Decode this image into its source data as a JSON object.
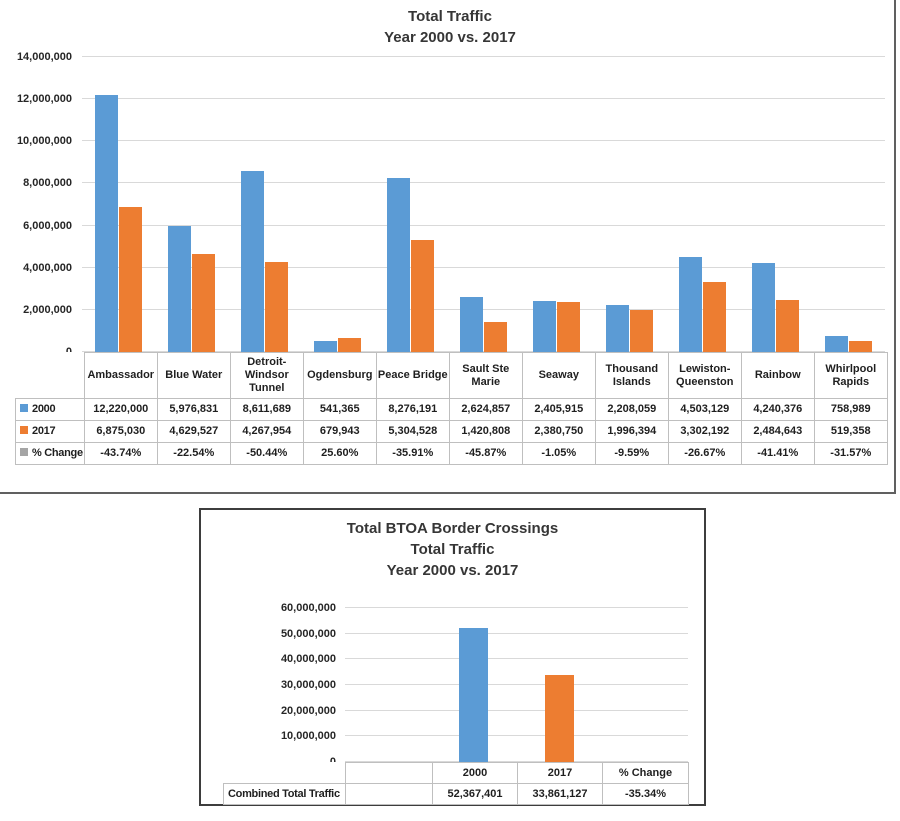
{
  "palette": {
    "series_2000_blue": "#5B9BD5",
    "series_2017_orange": "#ED7D31",
    "pct_change_gray": "#A5A5A5",
    "gridline_gray": "#D9D9D9",
    "table_border_gray": "#BFBFBF",
    "chart1_frame_gray": "#606060",
    "chart2_frame_dark": "#3D3D3D"
  },
  "chart_data": [
    {
      "type": "bar",
      "title": "Total Traffic",
      "subtitle": "Year 2000 vs. 2017",
      "xlabel": "",
      "ylabel": "",
      "ylim": [
        0,
        14000000
      ],
      "ytick_labels": [
        "0",
        "2,000,000",
        "4,000,000",
        "6,000,000",
        "8,000,000",
        "10,000,000",
        "12,000,000",
        "14,000,000"
      ],
      "grid": true,
      "legend_position": "data-table-left",
      "categories": [
        "Ambassador",
        "Blue Water",
        "Detroit-Windsor Tunnel",
        "Ogdensburg",
        "Peace Bridge",
        "Sault Ste Marie",
        "Seaway",
        "Thousand Islands",
        "Lewiston-Queenston",
        "Rainbow",
        "Whirlpool Rapids"
      ],
      "series": [
        {
          "name": "2000",
          "color": "#5B9BD5",
          "values": [
            12220000,
            5976831,
            8611689,
            541365,
            8276191,
            2624857,
            2405915,
            2208059,
            4503129,
            4240376,
            758989
          ],
          "value_labels": [
            "12,220,000",
            "5,976,831",
            "8,611,689",
            "541,365",
            "8,276,191",
            "2,624,857",
            "2,405,915",
            "2,208,059",
            "4,503,129",
            "4,240,376",
            "758,989"
          ]
        },
        {
          "name": "2017",
          "color": "#ED7D31",
          "values": [
            6875030,
            4629527,
            4267954,
            679943,
            5304528,
            1420808,
            2380750,
            1996394,
            3302192,
            2484643,
            519358
          ],
          "value_labels": [
            "6,875,030",
            "4,629,527",
            "4,267,954",
            "679,943",
            "5,304,528",
            "1,420,808",
            "2,380,750",
            "1,996,394",
            "3,302,192",
            "2,484,643",
            "519,358"
          ]
        },
        {
          "name": "% Change",
          "color": "#A5A5A5",
          "values": null,
          "value_labels": [
            "-43.74%",
            "-22.54%",
            "-50.44%",
            "25.60%",
            "-35.91%",
            "-45.87%",
            "-1.05%",
            "-9.59%",
            "-26.67%",
            "-41.41%",
            "-31.57%"
          ]
        }
      ]
    },
    {
      "type": "bar",
      "title": "Total BTOA Border Crossings",
      "subtitle": "Total Traffic",
      "subtitle2": "Year 2000 vs. 2017",
      "xlabel": "",
      "ylabel": "",
      "ylim": [
        0,
        60000000
      ],
      "ytick_labels": [
        "0",
        "10,000,000",
        "20,000,000",
        "30,000,000",
        "40,000,000",
        "50,000,000",
        "60,000,000"
      ],
      "grid": true,
      "legend_position": "data-table-left",
      "categories": [
        "",
        "2000",
        "2017",
        "% Change"
      ],
      "series": [
        {
          "name": "Combined Total Traffic",
          "show_key": false,
          "values": [
            null,
            52367401,
            33861127,
            null
          ],
          "bar_colors": [
            null,
            "#5B9BD5",
            "#ED7D31",
            null
          ],
          "value_labels": [
            "",
            "52,367,401",
            "33,861,127",
            "-35.34%"
          ]
        }
      ]
    }
  ]
}
